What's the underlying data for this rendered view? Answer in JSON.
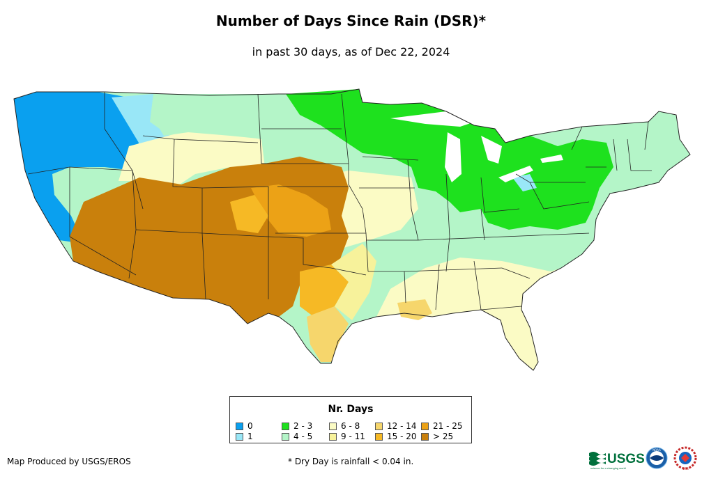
{
  "title": "Number of Days Since Rain (DSR)*",
  "subtitle": "in past 30 days, as of Dec 22, 2024",
  "legend": {
    "title": "Nr. Days",
    "items": [
      {
        "label": "0",
        "color": "#0aa0ef"
      },
      {
        "label": "1",
        "color": "#99e7f7"
      },
      {
        "label": "2 - 3",
        "color": "#1ee11e"
      },
      {
        "label": "4 - 5",
        "color": "#b4f5c8"
      },
      {
        "label": "6 - 8",
        "color": "#fbfbc5"
      },
      {
        "label": "9 - 11",
        "color": "#f7f29b"
      },
      {
        "label": "12 - 14",
        "color": "#f6d66c"
      },
      {
        "label": "15 - 20",
        "color": "#f6b925"
      },
      {
        "label": "21 - 25",
        "color": "#eca216"
      },
      {
        "label": "> 25",
        "color": "#c9800c"
      }
    ]
  },
  "credit": "Map Produced by USGS/EROS",
  "footnote": "* Dry Day is rainfall < 0.04 in.",
  "logos": {
    "usgs": "USGS",
    "usgs_tagline": "science for a changing world",
    "noaa": "NOAA",
    "nws": "NWS"
  }
}
